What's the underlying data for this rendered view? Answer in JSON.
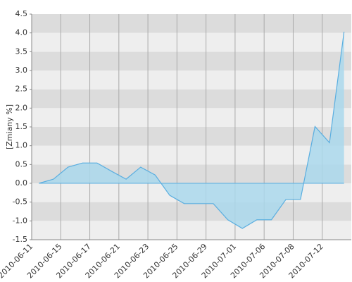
{
  "chart_data": {
    "type": "area",
    "y_label": "[Zmiany %]",
    "x": [
      0,
      1,
      2,
      3,
      4,
      5,
      6,
      7,
      8,
      9,
      10,
      11,
      12,
      13,
      14,
      15,
      16,
      17,
      18,
      19,
      20,
      21
    ],
    "series": [
      {
        "name": null,
        "color": "#5aaee0",
        "values": [
          0.0,
          0.11,
          0.43,
          0.54,
          0.54,
          0.32,
          0.11,
          0.43,
          0.22,
          -0.32,
          -0.54,
          -0.54,
          -0.54,
          -0.97,
          -1.2,
          -0.97,
          -0.97,
          -0.43,
          -0.43,
          1.51,
          1.08,
          4.03
        ]
      }
    ],
    "xlim": [
      -0.5,
      21.5
    ],
    "xticks": [
      {
        "value": -0.5,
        "label": "2010-06-11"
      },
      {
        "value": 1.5,
        "label": "2010-06-15"
      },
      {
        "value": 3.5,
        "label": "2010-06-17"
      },
      {
        "value": 5.5,
        "label": "2010-06-21"
      },
      {
        "value": 7.5,
        "label": "2010-06-23"
      },
      {
        "value": 9.5,
        "label": "2010-06-25"
      },
      {
        "value": 11.5,
        "label": "2010-06-29"
      },
      {
        "value": 13.5,
        "label": "2010-07-01"
      },
      {
        "value": 15.5,
        "label": "2010-07-06"
      },
      {
        "value": 17.5,
        "label": "2010-07-08"
      },
      {
        "value": 19.5,
        "label": "2010-07-12"
      }
    ],
    "ylim": [
      -1.5,
      4.5
    ],
    "yticks": [
      -1.5,
      {
        "value": -1.0,
        "label": "-1.0"
      },
      -0.5,
      {
        "value": 0.0,
        "label": "0.0"
      },
      0.5,
      {
        "value": 1.0,
        "label": "1.0"
      },
      1.5,
      {
        "value": 2.0,
        "label": "2.0"
      },
      2.5,
      {
        "value": 3.0,
        "label": "3.0"
      },
      3.5,
      {
        "value": 4.0,
        "label": "4.0"
      },
      4.5
    ],
    "grid": true
  }
}
